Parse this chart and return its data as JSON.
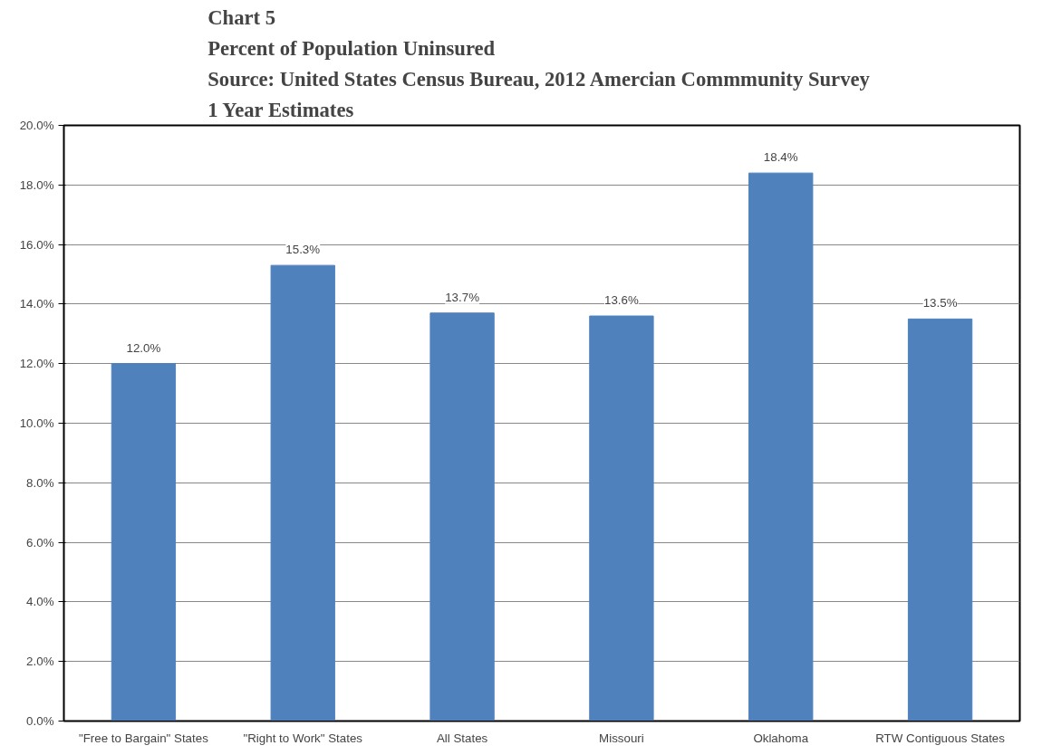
{
  "chart_data": {
    "type": "bar",
    "title": "Chart 5\nPercent of Population Uninsured\nSource:  United States Census Bureau, 2012 Amercian Commmunity Survey\n1 Year Estimates",
    "categories": [
      "\"Free to Bargain\" States",
      "\"Right to Work\" States",
      "All States",
      "Missouri",
      "Oklahoma",
      "RTW Contiguous States"
    ],
    "values": [
      12.0,
      15.3,
      13.7,
      13.6,
      18.4,
      13.5
    ],
    "value_labels": [
      "12.0%",
      "15.3%",
      "13.7%",
      "13.6%",
      "18.4%",
      "13.5%"
    ],
    "color": "#4f81bd",
    "ylim": [
      0,
      20
    ],
    "yticks": [
      {
        "value": 0,
        "label": "0.0%"
      },
      {
        "value": 2,
        "label": "2.0%"
      },
      {
        "value": 4,
        "label": "4.0%"
      },
      {
        "value": 6,
        "label": "6.0%"
      },
      {
        "value": 8,
        "label": "8.0%"
      },
      {
        "value": 10,
        "label": "10.0%"
      },
      {
        "value": 12,
        "label": "12.0%"
      },
      {
        "value": 14,
        "label": "14.0%"
      },
      {
        "value": 16,
        "label": "16.0%"
      },
      {
        "value": 18,
        "label": "18.0%"
      },
      {
        "value": 20,
        "label": "20.0%"
      }
    ],
    "grid": "y"
  }
}
